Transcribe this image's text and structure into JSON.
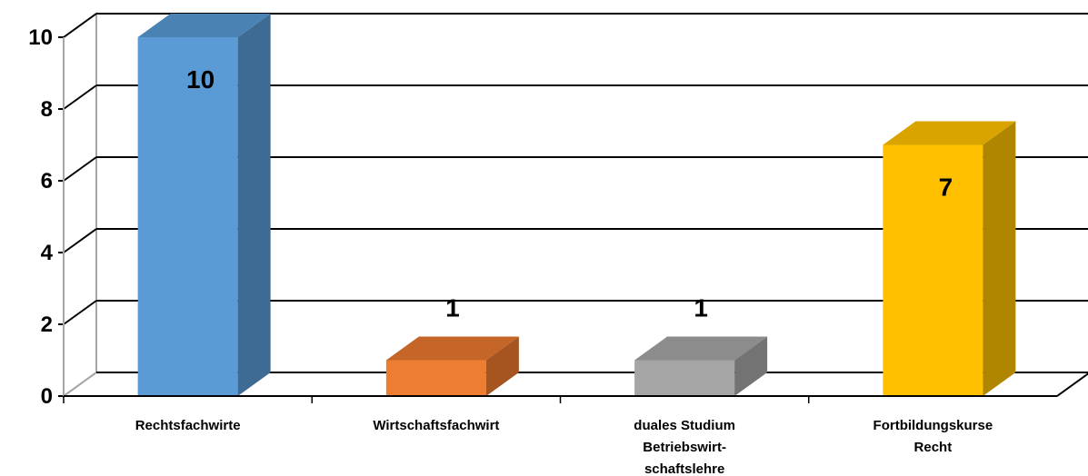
{
  "chart_data": {
    "type": "bar",
    "categories": [
      [
        "Rechtsfachwirte"
      ],
      [
        "Wirtschaftsfachwirt"
      ],
      [
        "duales Studium",
        "Betriebswirt-",
        "schaftslehre"
      ],
      [
        "Fortbildungskurse",
        "Recht"
      ]
    ],
    "values": [
      10,
      1,
      1,
      7
    ],
    "data_labels": [
      "10",
      "1",
      "1",
      "7"
    ],
    "ylim": [
      0,
      10
    ],
    "yticks": [
      "0",
      "2",
      "4",
      "6",
      "8",
      "10"
    ],
    "grid": true,
    "legend": "none",
    "title": "",
    "xlabel": "",
    "ylabel": "",
    "colors": {
      "front": [
        "#5B9BD5",
        "#ED7D31",
        "#A5A5A5",
        "#FFC000"
      ],
      "side": [
        "#3E6B93",
        "#A65420",
        "#737373",
        "#B08500"
      ],
      "top": [
        "#4A82B4",
        "#C66528",
        "#8C8C8C",
        "#D9A300"
      ],
      "grid": "#000000",
      "wall": "#A6A6A6"
    }
  }
}
